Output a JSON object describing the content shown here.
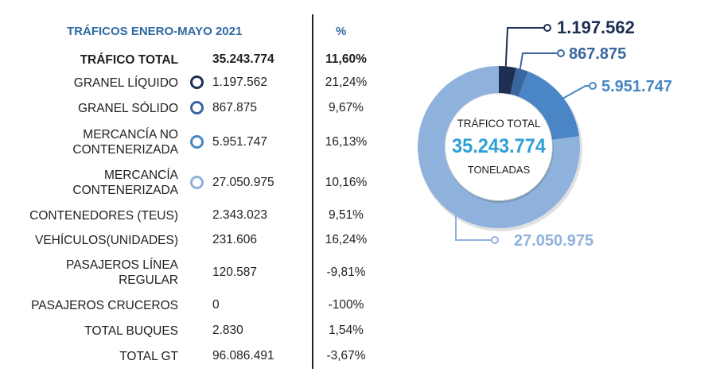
{
  "header": {
    "title": "TRÁFICOS ENERO-MAYO 2021",
    "pct_label": "%"
  },
  "total_row": {
    "label": "TRÁFICO TOTAL",
    "value": "35.243.774",
    "pct": "11,60%"
  },
  "rows": [
    {
      "label_lines": [
        "GRANEL LÍQUIDO"
      ],
      "value": "1.197.562",
      "pct": "21,24%",
      "color": "#1d2f52"
    },
    {
      "label_lines": [
        "GRANEL SÓLIDO"
      ],
      "value": "867.875",
      "pct": "9,67%",
      "color": "#3a66a0"
    },
    {
      "label_lines": [
        "MERCANCÍA NO",
        "CONTENERIZADA"
      ],
      "value": "5.951.747",
      "pct": "16,13%",
      "color": "#4a86c5"
    },
    {
      "label_lines": [
        "MERCANCÍA",
        "CONTENERIZADA"
      ],
      "value": "27.050.975",
      "pct": "10,16%",
      "color": "#8fb2dd"
    },
    {
      "label_lines": [
        "CONTENEDORES (TEUS)"
      ],
      "value": "2.343.023",
      "pct": "9,51%"
    },
    {
      "label_lines": [
        "VEHÍCULOS(UNIDADES)"
      ],
      "value": "231.606",
      "pct": "16,24%"
    },
    {
      "label_lines": [
        "PASAJEROS LÍNEA",
        "REGULAR"
      ],
      "value": "120.587",
      "pct": "-9,81%"
    },
    {
      "label_lines": [
        "PASAJEROS CRUCEROS"
      ],
      "value": "0",
      "pct": "-100%"
    },
    {
      "label_lines": [
        "TOTAL BUQUES"
      ],
      "value": "2.830",
      "pct": "1,54%"
    },
    {
      "label_lines": [
        "TOTAL GT"
      ],
      "value": "96.086.491",
      "pct": "-3,67%"
    }
  ],
  "chart_data": {
    "type": "pie",
    "style": "donut",
    "title": "TRÁFICO TOTAL",
    "center_value": "35.243.774",
    "center_unit": "TONELADAS",
    "categories": [
      "GRANEL LÍQUIDO",
      "GRANEL SÓLIDO",
      "MERCANCÍA NO CONTENERIZADA",
      "MERCANCÍA CONTENERIZADA"
    ],
    "values": [
      1197562,
      867875,
      5951747,
      27050975
    ],
    "value_labels": [
      "1.197.562",
      "867.875",
      "5.951.747",
      "27.050.975"
    ],
    "colors": [
      "#1d2f52",
      "#3a66a0",
      "#4a86c5",
      "#8fb2dd"
    ],
    "center_value_color": "#2f9fd8"
  }
}
